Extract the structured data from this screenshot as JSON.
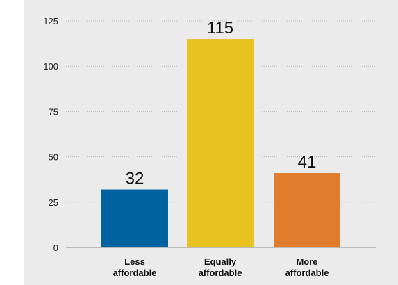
{
  "chart_data": {
    "type": "bar",
    "categories": [
      [
        "Less",
        "affordable"
      ],
      [
        "Equally",
        "affordable"
      ],
      [
        "More",
        "affordable"
      ]
    ],
    "values": [
      32,
      115,
      41
    ],
    "data_labels": [
      "32",
      "115",
      "41"
    ],
    "colors": [
      "#0063a0",
      "#e8c21e",
      "#e07c2c"
    ],
    "ylim": [
      0,
      125
    ],
    "yticks": [
      0,
      25,
      50,
      75,
      100,
      125
    ],
    "grid": true,
    "title": "",
    "xlabel": "",
    "ylabel": ""
  }
}
